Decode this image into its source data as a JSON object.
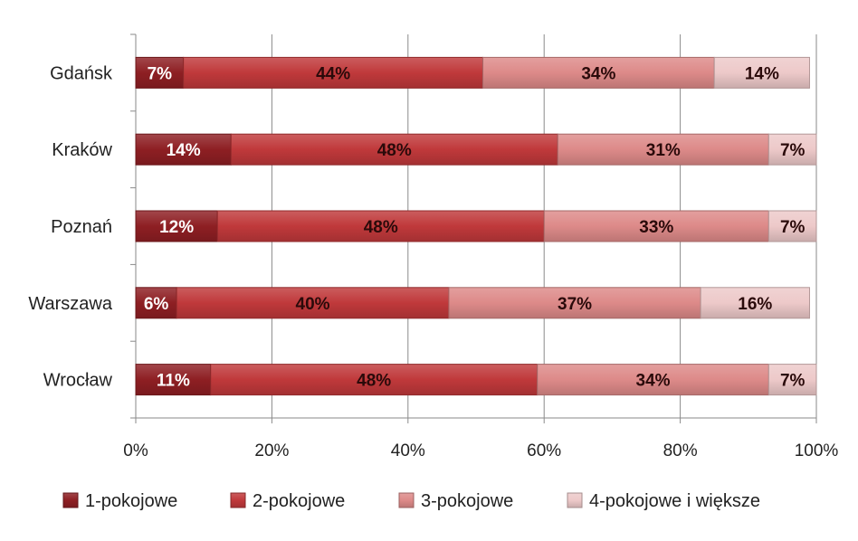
{
  "chart_data": {
    "type": "bar",
    "orientation": "horizontal",
    "stacked": "percent",
    "categories": [
      "Gdańsk",
      "Kraków",
      "Poznań",
      "Warszawa",
      "Wrocław"
    ],
    "series": [
      {
        "name": "1-pokojowe",
        "values": [
          7,
          14,
          12,
          6,
          11
        ],
        "color": "#8e1f23",
        "label_color": "#ffffff"
      },
      {
        "name": "2-pokojowe",
        "values": [
          44,
          48,
          48,
          40,
          48
        ],
        "color": "#c0393b",
        "label_color": "#2a0a0a"
      },
      {
        "name": "3-pokojowe",
        "values": [
          34,
          31,
          33,
          37,
          34
        ],
        "color": "#dd8a89",
        "label_color": "#2a0a0a"
      },
      {
        "name": "4-pokojowe i większe",
        "values": [
          14,
          7,
          7,
          16,
          7
        ],
        "color": "#edc9c9",
        "label_color": "#2a0a0a"
      }
    ],
    "data_labels": [
      [
        "7%",
        "44%",
        "34%",
        "14%"
      ],
      [
        "14%",
        "48%",
        "31%",
        "7%"
      ],
      [
        "12%",
        "48%",
        "33%",
        "7%"
      ],
      [
        "6%",
        "40%",
        "37%",
        "16%"
      ],
      [
        "11%",
        "48%",
        "34%",
        "7%"
      ]
    ],
    "xlim": [
      0,
      100
    ],
    "xticks": [
      0,
      20,
      40,
      60,
      80,
      100
    ],
    "xtick_labels": [
      "0%",
      "20%",
      "40%",
      "60%",
      "80%",
      "100%"
    ],
    "grid": true,
    "legend_position": "bottom",
    "title": "",
    "xlabel": "",
    "ylabel": ""
  }
}
